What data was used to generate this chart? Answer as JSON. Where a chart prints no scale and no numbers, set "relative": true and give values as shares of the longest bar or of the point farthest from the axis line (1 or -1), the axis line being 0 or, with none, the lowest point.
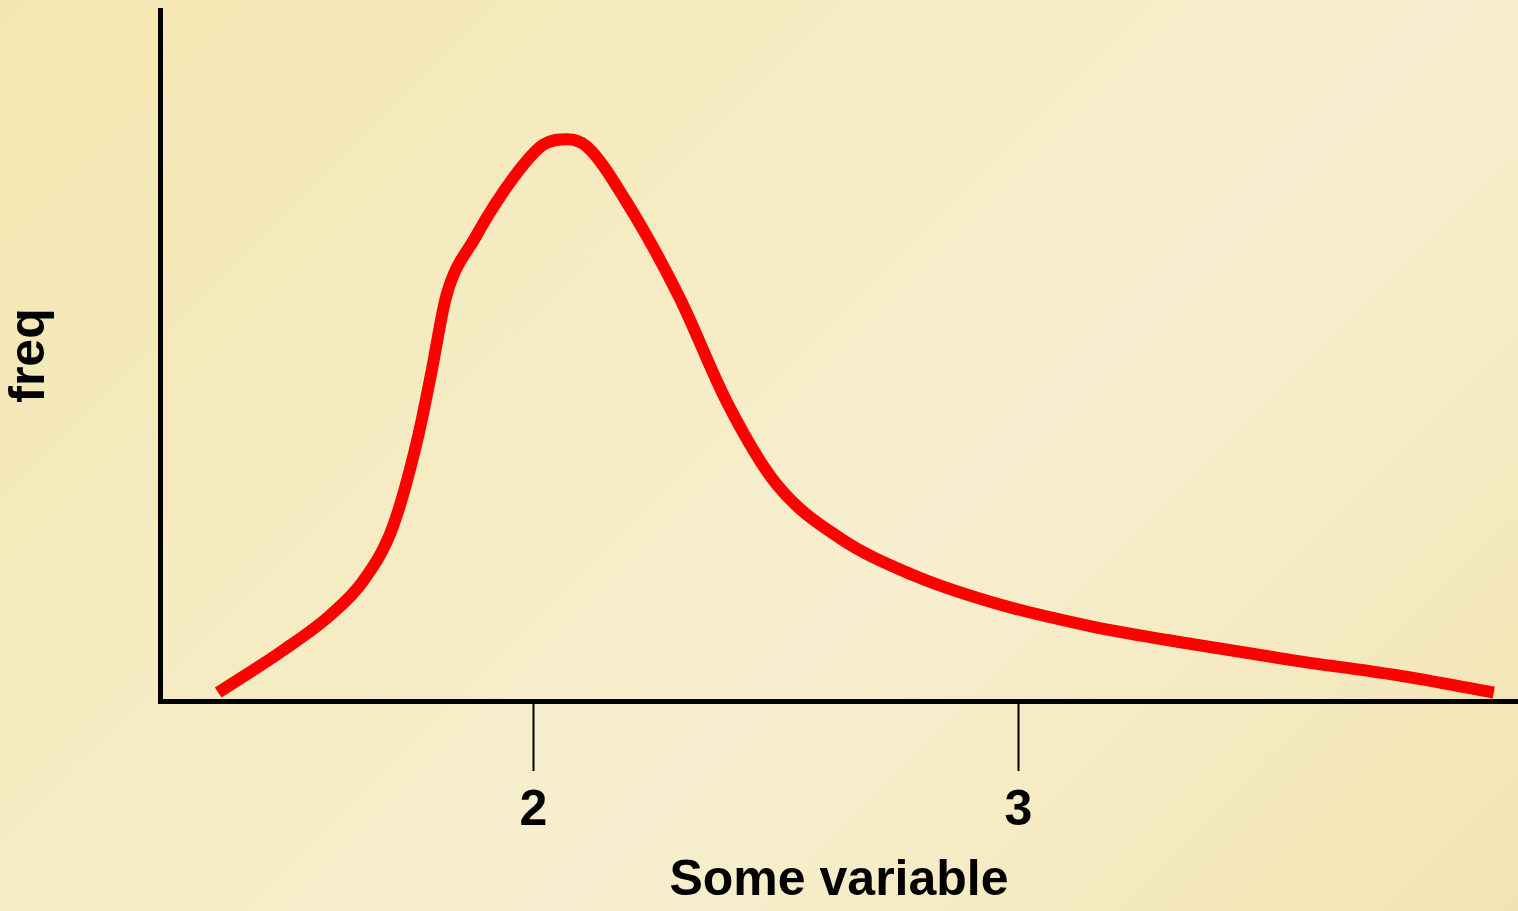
{
  "chart_data": {
    "type": "line",
    "xlabel": "Some variable",
    "ylabel": "freq",
    "relative": true,
    "xlim": [
      1.23,
      4.03
    ],
    "xticks": [
      2,
      3
    ],
    "tick_labels": "x",
    "grid": false,
    "legend": false,
    "marker": "none",
    "line_style": "solid",
    "series": [
      {
        "color": "#ff0000",
        "x": [
          1.35,
          1.48,
          1.58,
          1.65,
          1.71,
          1.76,
          1.79,
          1.82,
          1.88,
          1.96,
          2.02,
          2.07,
          2.11,
          2.19,
          2.3,
          2.4,
          2.5,
          2.63,
          2.78,
          2.94,
          3.15,
          3.36,
          3.57,
          3.78,
          3.98
        ],
        "values": [
          0.015,
          0.088,
          0.152,
          0.215,
          0.31,
          0.463,
          0.587,
          0.72,
          0.825,
          0.933,
          0.99,
          1,
          0.987,
          0.891,
          0.72,
          0.53,
          0.387,
          0.291,
          0.225,
          0.177,
          0.133,
          0.101,
          0.072,
          0.046,
          0.015
        ]
      }
    ]
  }
}
